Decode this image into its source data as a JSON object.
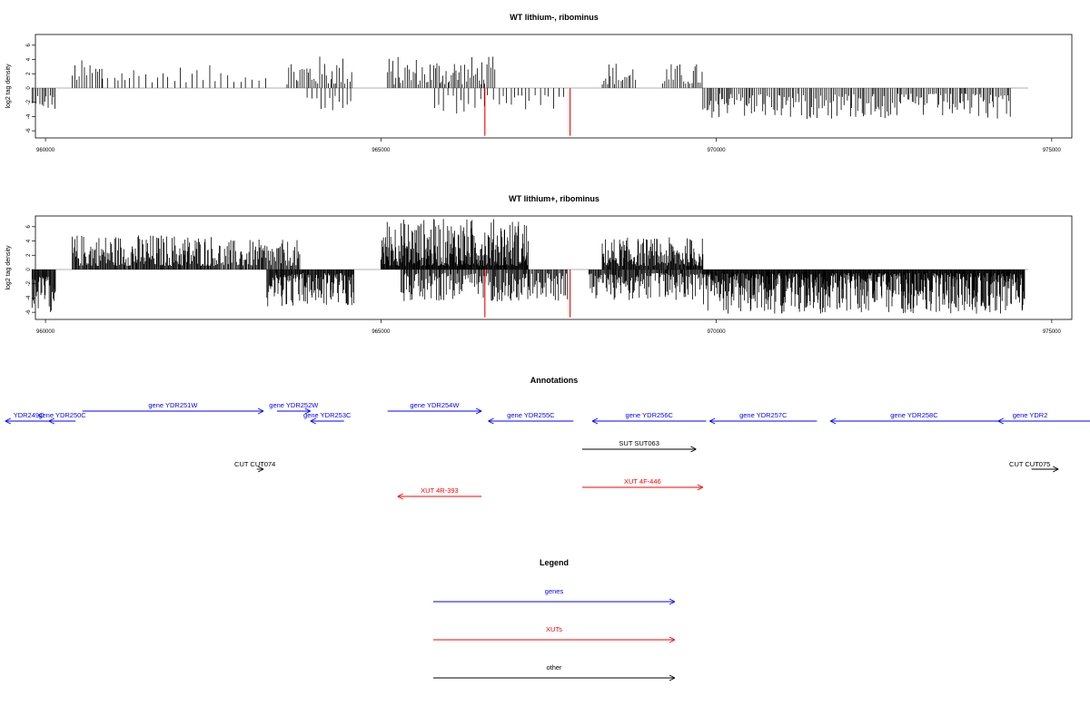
{
  "chart_data": [
    {
      "type": "bar",
      "title": "WT lithium-, ribominus",
      "ylabel": "log2 tag density",
      "xlabel": "",
      "xlim": [
        959850,
        975300
      ],
      "ylim": [
        -7,
        7.5
      ],
      "yticks": [
        -6,
        -4,
        -2,
        0,
        2,
        4,
        6
      ],
      "xticks": [
        960000,
        965000,
        970000,
        975000
      ],
      "grid": false,
      "highlight_color": "#ff0000",
      "highlights": [
        {
          "x": 966550,
          "value": -6.7
        },
        {
          "x": 967820,
          "value": -6.7
        }
      ],
      "segments": [
        {
          "range": [
            959800,
            960150
          ],
          "sign": -1,
          "min": 1.0,
          "max": 3.2,
          "step": 25
        },
        {
          "range": [
            960400,
            960850
          ],
          "sign": 1,
          "min": 1.0,
          "max": 4.0,
          "step": 40
        },
        {
          "range": [
            960850,
            963300
          ],
          "sign": 1,
          "min": 0.8,
          "max": 3.2,
          "step": 80
        },
        {
          "range": [
            963600,
            964600
          ],
          "sign": 1,
          "min": 0.5,
          "max": 4.6,
          "step": 30
        },
        {
          "range": [
            963900,
            964600
          ],
          "sign": -1,
          "min": 1.0,
          "max": 4.2,
          "step": 60
        },
        {
          "range": [
            965100,
            966700
          ],
          "sign": 1,
          "min": 0.5,
          "max": 4.5,
          "step": 25
        },
        {
          "range": [
            965800,
            967800
          ],
          "sign": -1,
          "min": 1.0,
          "max": 3.6,
          "step": 70
        },
        {
          "range": [
            968300,
            968800
          ],
          "sign": 1,
          "min": 0.5,
          "max": 3.8,
          "step": 30
        },
        {
          "range": [
            969200,
            969800
          ],
          "sign": 1,
          "min": 0.5,
          "max": 3.5,
          "step": 30
        },
        {
          "range": [
            969800,
            974400
          ],
          "sign": -1,
          "min": 0.8,
          "max": 4.4,
          "step": 25
        }
      ]
    },
    {
      "type": "bar",
      "title": "WT lithium+, ribominus",
      "ylabel": "log2 tag density",
      "xlabel": "",
      "xlim": [
        959850,
        975300
      ],
      "ylim": [
        -7,
        7.5
      ],
      "yticks": [
        -6,
        -4,
        -2,
        0,
        2,
        4,
        6
      ],
      "xticks": [
        960000,
        965000,
        970000,
        975000
      ],
      "grid": false,
      "highlight_color": "#ff0000",
      "highlights": [
        {
          "x": 966550,
          "value": -6.7
        },
        {
          "x": 967820,
          "value": -6.7
        }
      ],
      "segments": [
        {
          "range": [
            959800,
            960150
          ],
          "sign": -1,
          "min": 1.0,
          "max": 6.0,
          "step": 10
        },
        {
          "range": [
            960400,
            962500
          ],
          "sign": 1,
          "min": 0.5,
          "max": 5.0,
          "step": 12
        },
        {
          "range": [
            962500,
            963800
          ],
          "sign": 1,
          "min": 0.5,
          "max": 4.2,
          "step": 15
        },
        {
          "range": [
            963300,
            964600
          ],
          "sign": -1,
          "min": 0.5,
          "max": 5.2,
          "step": 10
        },
        {
          "range": [
            965000,
            967200
          ],
          "sign": 1,
          "min": 0.5,
          "max": 7.2,
          "step": 8
        },
        {
          "range": [
            965300,
            967800
          ],
          "sign": -1,
          "min": 0.5,
          "max": 4.5,
          "step": 15
        },
        {
          "range": [
            968300,
            969800
          ],
          "sign": 1,
          "min": 0.5,
          "max": 4.5,
          "step": 10
        },
        {
          "range": [
            968100,
            969800
          ],
          "sign": -1,
          "min": 0.5,
          "max": 4.4,
          "step": 12
        },
        {
          "range": [
            969800,
            974600
          ],
          "sign": -1,
          "min": 0.5,
          "max": 6.2,
          "step": 8
        }
      ]
    }
  ],
  "annotations": {
    "title": "Annotations",
    "xlim": [
      959850,
      975300
    ],
    "features": [
      {
        "label": "YDR249C",
        "start": 959400,
        "end": 960100,
        "strand": "-",
        "type": "gene",
        "lane": 0
      },
      {
        "label": "gene YDR250C",
        "start": 960050,
        "end": 960450,
        "strand": "-",
        "type": "gene",
        "lane": 0
      },
      {
        "label": "gene YDR251W",
        "start": 960550,
        "end": 963250,
        "strand": "+",
        "type": "gene",
        "lane": -1
      },
      {
        "label": "gene YDR252W",
        "start": 963450,
        "end": 963950,
        "strand": "+",
        "type": "gene",
        "lane": -1
      },
      {
        "label": "gene YDR253C",
        "start": 963950,
        "end": 964450,
        "strand": "-",
        "type": "gene",
        "lane": 0
      },
      {
        "label": "gene YDR254W",
        "start": 965100,
        "end": 966500,
        "strand": "+",
        "type": "gene",
        "lane": -1
      },
      {
        "label": "gene YDR255C",
        "start": 966600,
        "end": 967870,
        "strand": "-",
        "type": "gene",
        "lane": 0
      },
      {
        "label": "gene YDR256C",
        "start": 968150,
        "end": 969850,
        "strand": "-",
        "type": "gene",
        "lane": 0
      },
      {
        "label": "gene YDR257C",
        "start": 969900,
        "end": 971500,
        "strand": "-",
        "type": "gene",
        "lane": 0
      },
      {
        "label": "gene YDR258C",
        "start": 971700,
        "end": 974200,
        "strand": "-",
        "type": "gene",
        "lane": 0
      },
      {
        "label": "gene YDR2",
        "start": 974200,
        "end": 975700,
        "strand": "-",
        "type": "gene",
        "lane": 0
      },
      {
        "label": "SUT SUT063",
        "start": 968000,
        "end": 969700,
        "strand": "+",
        "type": "other",
        "lane": 1
      },
      {
        "label": "CUT CUT074",
        "start": 963150,
        "end": 963250,
        "strand": "+",
        "type": "other",
        "lane": 2
      },
      {
        "label": "CUT CUT075",
        "start": 974700,
        "end": 975100,
        "strand": "+",
        "type": "other",
        "lane": 2
      },
      {
        "label": "XUT 4F-446",
        "start": 968000,
        "end": 969800,
        "strand": "+",
        "type": "xut",
        "lane": 3
      },
      {
        "label": "XUT 4R-393",
        "start": 965250,
        "end": 966500,
        "strand": "-",
        "type": "xut",
        "lane": 4
      }
    ]
  },
  "legend": {
    "title": "Legend",
    "items": [
      {
        "label": "genes",
        "color": "#0000ff"
      },
      {
        "label": "XUTs",
        "color": "#ff0000"
      },
      {
        "label": "other",
        "color": "#000000"
      }
    ]
  },
  "colors": {
    "gene": "#0000ff",
    "xut": "#ff0000",
    "other": "#000000",
    "baseline": "#999999"
  }
}
